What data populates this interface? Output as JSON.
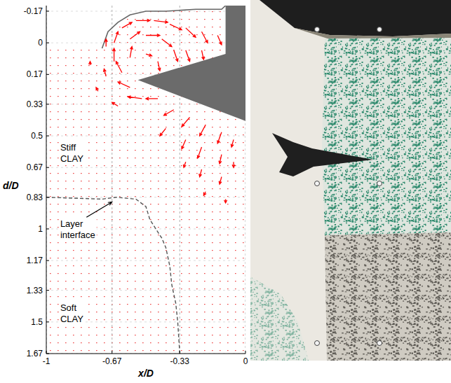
{
  "chart_data": {
    "type": "quiver",
    "x_label": "x/D",
    "y_label": "d/D",
    "xlim": [
      -1,
      0
    ],
    "ylim": [
      -0.2,
      1.67
    ],
    "xticks": [
      -1,
      -0.67,
      -0.33,
      0
    ],
    "yticks": [
      -0.17,
      0,
      0.17,
      0.33,
      0.5,
      0.67,
      0.83,
      1,
      1.17,
      1.33,
      1.5,
      1.67
    ],
    "grid": true,
    "color": "#ff0000",
    "vectors": {
      "x": [
        -0.7,
        -0.66,
        -0.66,
        -0.62,
        -0.55,
        -0.46,
        -0.38,
        -0.3,
        -0.22,
        -0.14,
        -0.58,
        -0.5,
        -0.42,
        -0.36,
        -0.3,
        -0.22,
        -0.58,
        -0.5,
        -0.44,
        -0.62,
        -0.58,
        -0.7,
        -0.52,
        -0.44,
        -0.36,
        -0.28,
        -0.2,
        -0.12,
        -0.4,
        -0.3,
        -0.22,
        -0.12,
        -0.3,
        -0.22,
        -0.12,
        -0.2,
        -0.1,
        -0.78,
        -0.74,
        -0.64,
        -0.06,
        -0.06
      ],
      "d": [
        0.02,
        0.1,
        0.0,
        -0.08,
        -0.12,
        -0.12,
        -0.1,
        -0.08,
        -0.06,
        -0.04,
        -0.02,
        -0.04,
        -0.02,
        0.04,
        0.04,
        0.04,
        0.08,
        0.06,
        0.1,
        0.16,
        0.24,
        0.18,
        0.3,
        0.3,
        0.36,
        0.4,
        0.44,
        0.48,
        0.46,
        0.52,
        0.56,
        0.6,
        0.64,
        0.68,
        0.72,
        0.8,
        0.84,
        0.12,
        0.26,
        0.34,
        0.52,
        0.64
      ],
      "u": [
        0.0,
        0.0,
        0.02,
        0.05,
        0.07,
        0.07,
        0.06,
        0.05,
        0.03,
        0.02,
        0.05,
        0.07,
        0.05,
        0.02,
        0.02,
        0.01,
        0.01,
        0.03,
        0.01,
        -0.03,
        -0.06,
        -0.01,
        -0.07,
        -0.06,
        -0.05,
        -0.04,
        -0.03,
        -0.02,
        -0.03,
        -0.02,
        -0.02,
        -0.01,
        -0.01,
        -0.01,
        -0.01,
        -0.01,
        0.0,
        0.0,
        -0.01,
        -0.03,
        -0.01,
        0.0
      ],
      "v": [
        -0.04,
        -0.07,
        -0.06,
        -0.03,
        0.0,
        0.01,
        0.03,
        0.05,
        0.06,
        0.05,
        -0.04,
        0.0,
        0.04,
        0.06,
        0.06,
        0.05,
        -0.06,
        0.01,
        0.05,
        -0.06,
        -0.03,
        -0.04,
        -0.01,
        0.0,
        0.03,
        0.05,
        0.06,
        0.06,
        0.04,
        0.05,
        0.06,
        0.05,
        0.03,
        0.04,
        0.04,
        0.02,
        0.02,
        -0.02,
        -0.02,
        -0.02,
        0.04,
        0.03
      ]
    },
    "surface": {
      "x": [
        -0.72,
        -0.69,
        -0.64,
        -0.58,
        -0.5,
        -0.4,
        -0.25,
        -0.12,
        -0.1
      ],
      "d": [
        0.03,
        -0.06,
        -0.11,
        -0.15,
        -0.17,
        -0.17,
        -0.18,
        -0.18,
        -0.2
      ]
    },
    "layer_interface": {
      "x": [
        -1,
        -0.72,
        -0.65,
        -0.55,
        -0.5,
        -0.48,
        -0.45,
        -0.42,
        -0.4,
        -0.38,
        -0.37,
        -0.35,
        -0.34,
        -0.33
      ],
      "d": [
        0.83,
        0.84,
        0.83,
        0.84,
        0.88,
        0.95,
        1.0,
        1.05,
        1.1,
        1.2,
        1.3,
        1.4,
        1.5,
        1.67
      ]
    },
    "cone": {
      "x": [
        -0.1,
        0,
        0,
        -0.54,
        -0.1
      ],
      "d": [
        -0.2,
        -0.2,
        0.42,
        0.2,
        0.06
      ]
    },
    "annotations": [
      "Stiff CLAY",
      "Layer interface",
      "Soft CLAY"
    ]
  }
}
